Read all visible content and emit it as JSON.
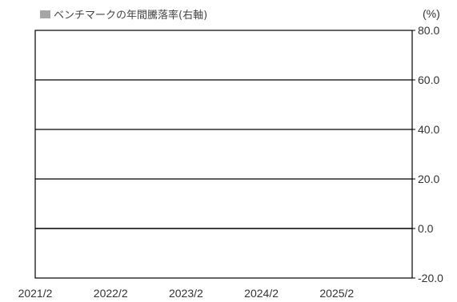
{
  "chart_data": {
    "type": "bar",
    "legend": {
      "label": "ベンチマークの年間騰落率(右軸)",
      "color": "#a6a6a6",
      "placement": "top-left"
    },
    "y_unit": "(%)",
    "y_axis_side": "right",
    "ylim": [
      -20,
      80
    ],
    "y_ticks": [
      "80.0",
      "60.0",
      "40.0",
      "20.0",
      "0.0",
      "-20.0"
    ],
    "y_tick_values": [
      80,
      60,
      40,
      20,
      0,
      -20
    ],
    "x_ticks": [
      "2021/2",
      "2022/2",
      "2023/2",
      "2024/2",
      "2025/2"
    ],
    "x_range": [
      "2021-02",
      "2026-01"
    ],
    "grid": true,
    "gridline_color": "#000000",
    "series": [
      {
        "name": "ベンチマークの年間騰落率(右軸)",
        "color": "#a6a6a6",
        "x": [],
        "values": []
      }
    ]
  }
}
